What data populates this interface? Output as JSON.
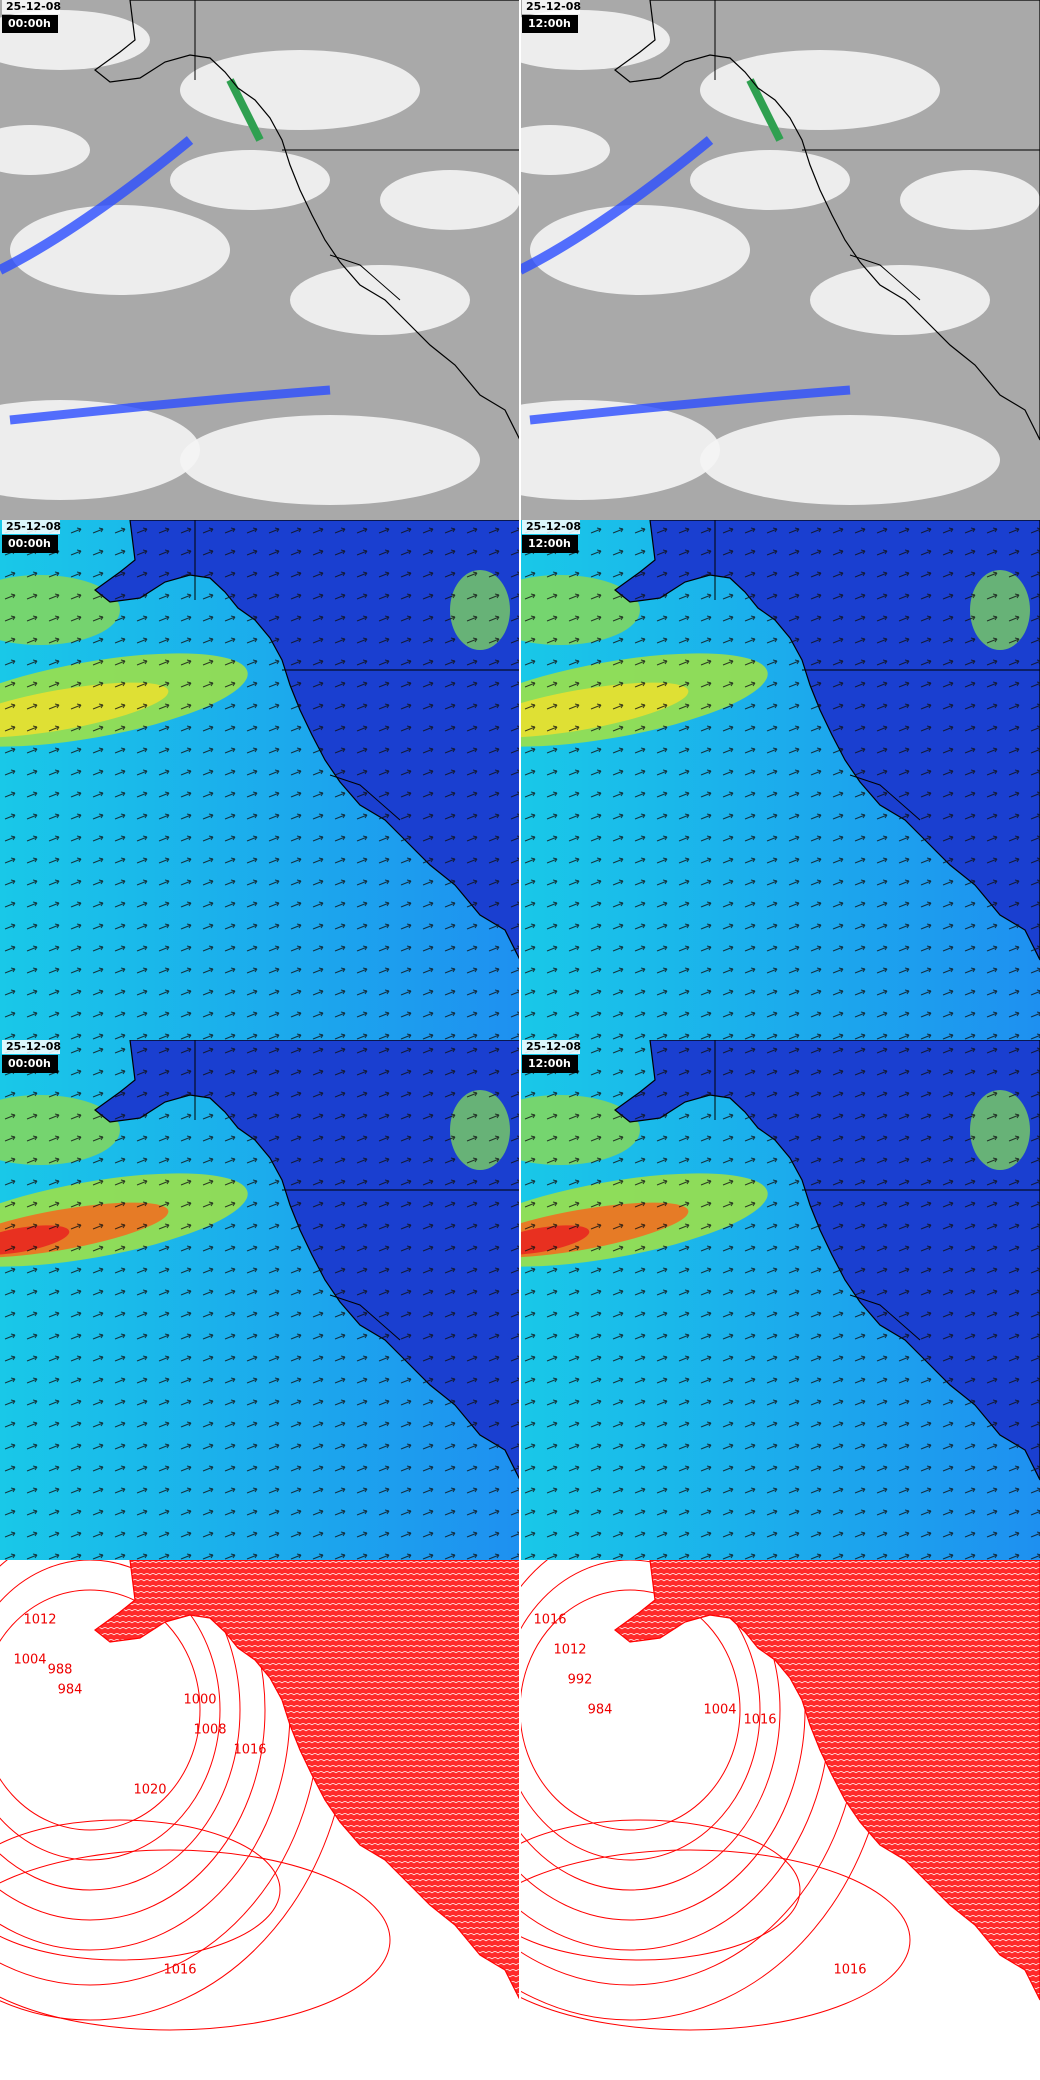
{
  "panels": [
    {
      "date": "25-12-08",
      "time": "00:00h"
    },
    {
      "date": "25-12-08",
      "time": "12:00h"
    },
    {
      "date": "25-12-08",
      "time": "00:00h"
    },
    {
      "date": "25-12-08",
      "time": "12:00h"
    },
    {
      "date": "25-12-08",
      "time": "00:00h"
    },
    {
      "date": "25-12-08",
      "time": "12:00h"
    },
    {
      "isobar_labels": [
        "1012",
        "1004",
        "988",
        "984",
        "1000",
        "1008",
        "1016",
        "1020",
        "1016"
      ]
    },
    {
      "isobar_labels": [
        "1016",
        "1012",
        "992",
        "984",
        "1004",
        "1016",
        "1016"
      ]
    }
  ]
}
